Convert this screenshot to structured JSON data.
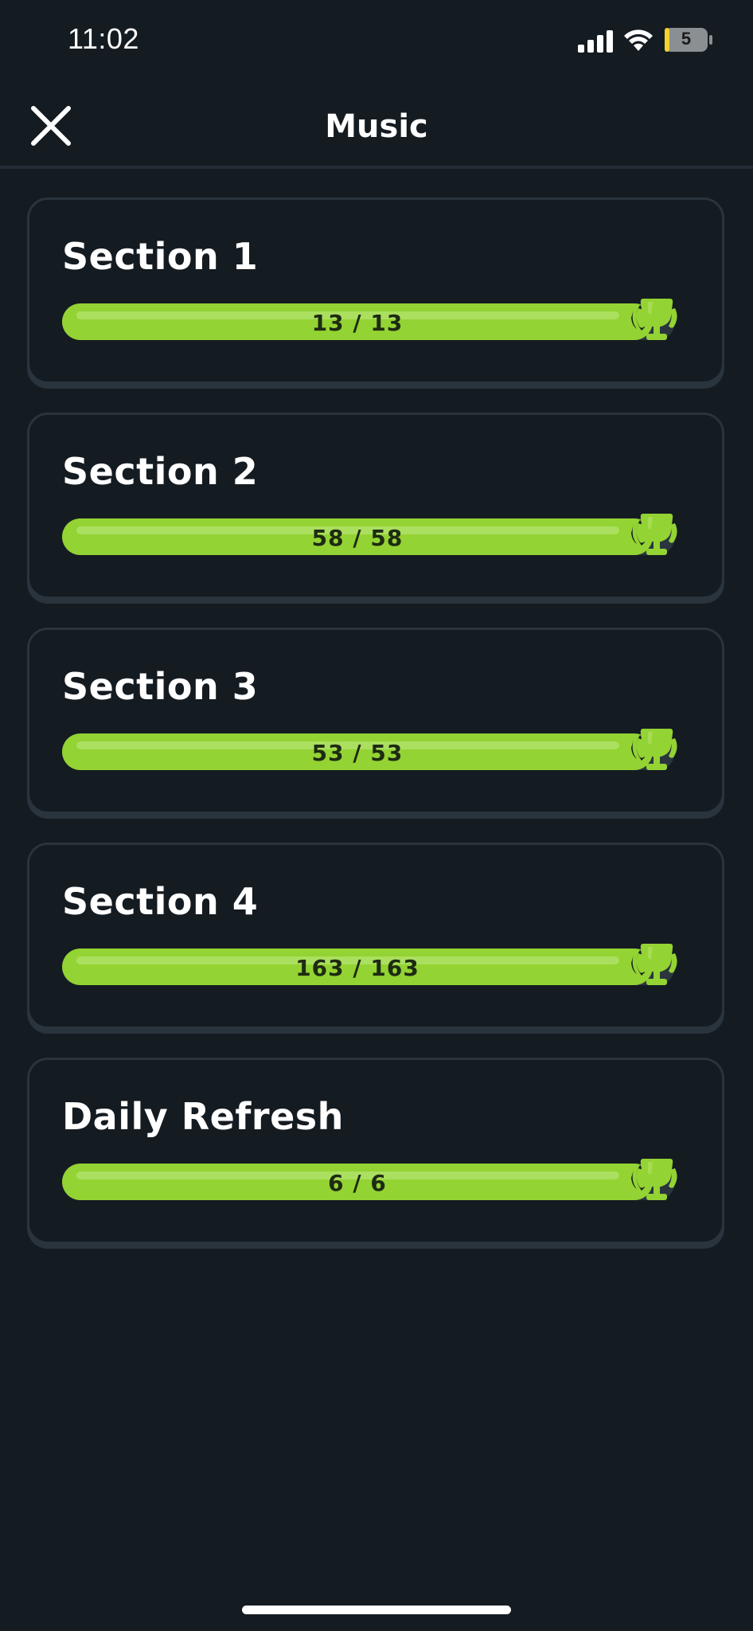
{
  "status_bar": {
    "time": "11:02",
    "battery_level": "5",
    "icons": [
      "signal-icon",
      "wifi-icon",
      "battery-icon"
    ]
  },
  "header": {
    "title": "Music",
    "close_icon": "close-icon"
  },
  "sections": [
    {
      "title": "Section 1",
      "progress_text": "13 / 13",
      "completed": 13,
      "total": 13
    },
    {
      "title": "Section 2",
      "progress_text": "58 / 58",
      "completed": 58,
      "total": 58
    },
    {
      "title": "Section 3",
      "progress_text": "53 / 53",
      "completed": 53,
      "total": 53
    },
    {
      "title": "Section 4",
      "progress_text": "163 / 163",
      "completed": 163,
      "total": 163
    },
    {
      "title": "Daily Refresh",
      "progress_text": "6 / 6",
      "completed": 6,
      "total": 6
    }
  ],
  "colors": {
    "background": "#141b21",
    "progress_fill": "#93d333",
    "trophy": "#93d333",
    "card_border": "#2a343d"
  }
}
